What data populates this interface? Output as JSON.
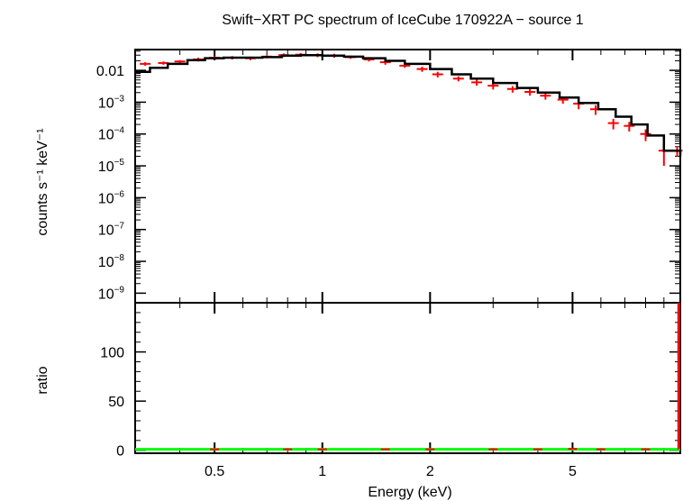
{
  "colors": {
    "data": "#ff0000",
    "model": "#000000",
    "ratio_line": "#00ff00",
    "axes": "#000000",
    "background": "#ffffff"
  },
  "chart_data": [
    {
      "type": "line",
      "title": "Swift−XRT PC spectrum of IceCube 170922A − source 1",
      "ylabel": "counts s⁻¹ keV⁻¹",
      "xscale": "log",
      "yscale": "log",
      "xlim": [
        0.3,
        10
      ],
      "ylim": [
        5e-10,
        0.045
      ],
      "yticks": [
        {
          "value": 0.01,
          "label": "0.01"
        },
        {
          "value": 0.001,
          "base": "10",
          "exp": "−3"
        },
        {
          "value": 0.0001,
          "base": "10",
          "exp": "−4"
        },
        {
          "value": 1e-05,
          "base": "10",
          "exp": "−5"
        },
        {
          "value": 1e-06,
          "base": "10",
          "exp": "−6"
        },
        {
          "value": 1e-07,
          "base": "10",
          "exp": "−7"
        },
        {
          "value": 1e-08,
          "base": "10",
          "exp": "−8"
        },
        {
          "value": 1e-09,
          "base": "10",
          "exp": "−9"
        }
      ],
      "series": [
        {
          "role": "data",
          "x": [
            0.32,
            0.36,
            0.4,
            0.45,
            0.5,
            0.56,
            0.63,
            0.7,
            0.78,
            0.87,
            0.97,
            1.08,
            1.2,
            1.35,
            1.5,
            1.7,
            1.9,
            2.1,
            2.4,
            2.7,
            3.0,
            3.4,
            3.8,
            4.2,
            4.7,
            5.2,
            5.8,
            6.5,
            7.2,
            8.0,
            9.0,
            9.8
          ],
          "y": [
            0.016,
            0.017,
            0.019,
            0.022,
            0.025,
            0.025,
            0.024,
            0.027,
            0.03,
            0.031,
            0.03,
            0.029,
            0.026,
            0.022,
            0.018,
            0.014,
            0.011,
            0.0075,
            0.0055,
            0.0042,
            0.0033,
            0.0026,
            0.0021,
            0.0016,
            0.0012,
            0.0009,
            0.0006,
            0.00022,
            0.00018,
            0.0001,
            3e-05,
            3e-05
          ],
          "yerr": [
            0.002,
            0.002,
            0.002,
            0.003,
            0.003,
            0.003,
            0.003,
            0.003,
            0.004,
            0.004,
            0.004,
            0.004,
            0.003,
            0.003,
            0.003,
            0.002,
            0.002,
            0.0015,
            0.001,
            0.0009,
            0.0008,
            0.0006,
            0.0005,
            0.0004,
            0.0003,
            0.0003,
            0.0002,
            8e-05,
            6e-05,
            4e-05,
            2e-05,
            1e-05
          ]
        },
        {
          "role": "model",
          "x": [
            0.3,
            0.33,
            0.37,
            0.42,
            0.47,
            0.53,
            0.6,
            0.68,
            0.77,
            0.87,
            1.0,
            1.15,
            1.3,
            1.5,
            1.7,
            2.0,
            2.3,
            2.6,
            3.0,
            3.5,
            4.0,
            4.6,
            5.2,
            5.9,
            6.6,
            7.3,
            8.1,
            9.0,
            10
          ],
          "y": [
            0.009,
            0.012,
            0.016,
            0.021,
            0.024,
            0.025,
            0.025,
            0.026,
            0.029,
            0.03,
            0.029,
            0.027,
            0.024,
            0.02,
            0.016,
            0.011,
            0.0075,
            0.0055,
            0.004,
            0.0028,
            0.002,
            0.0014,
            0.00095,
            0.0006,
            0.00035,
            0.0002,
            9e-05,
            3e-05,
            2e-05
          ]
        }
      ]
    },
    {
      "type": "line",
      "xlabel": "Energy (keV)",
      "ylabel": "ratio",
      "xscale": "log",
      "xlim": [
        0.3,
        10
      ],
      "ylim": [
        -3,
        150
      ],
      "xticks": [
        {
          "value": 0.5,
          "label": "0.5"
        },
        {
          "value": 1,
          "label": "1"
        },
        {
          "value": 2,
          "label": "2"
        },
        {
          "value": 5,
          "label": "5"
        }
      ],
      "yticks": [
        {
          "value": 0,
          "label": "0"
        },
        {
          "value": 50,
          "label": "50"
        },
        {
          "value": 100,
          "label": "100"
        }
      ],
      "reference_line": {
        "y": 1
      },
      "series": [
        {
          "role": "ratio",
          "x": [
            0.5,
            0.8,
            1.0,
            1.5,
            2.0,
            3.0,
            4.0,
            5.0,
            6.0,
            8.0,
            9.9
          ],
          "y": [
            1,
            1,
            1,
            1,
            1,
            1,
            1,
            1.5,
            1,
            1,
            150
          ]
        }
      ]
    }
  ]
}
